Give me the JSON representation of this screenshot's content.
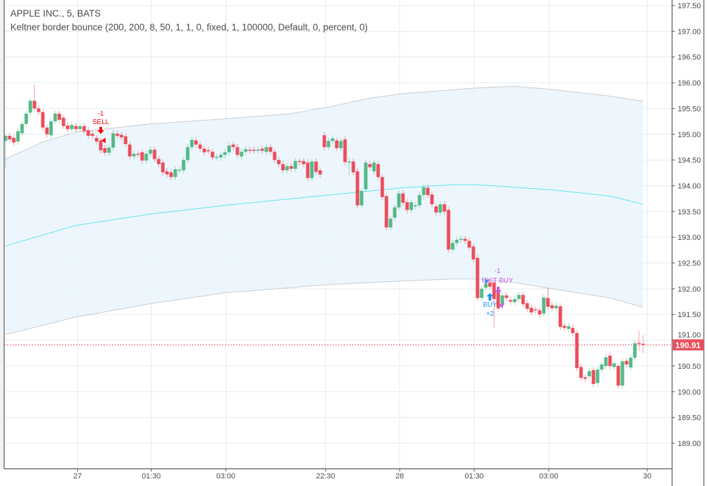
{
  "legend": {
    "symbol": "APPLE INC., 5, BATS",
    "strategy": "Keltner border bounce (200, 200, 8, 50, 1, 1, 0, fixed, 1, 100000, Default, 0, percent, 0)"
  },
  "colors": {
    "up": "#53b987",
    "down": "#eb4d5c",
    "band_fill": "#e9f4fb",
    "band_line": "#c9cdd2",
    "mid_line": "#5fe3f0",
    "grid": "#e1ecf2",
    "sell": "#ff0000",
    "buy": "#2196f3",
    "exit": "#c85ce6",
    "last_price": "#eb4d5c"
  },
  "chart_data": {
    "type": "candlestick",
    "title": "APPLE INC., 5, BATS",
    "ylim": [
      188.6,
      197.6
    ],
    "y_ticks": [
      "197.50",
      "197.00",
      "196.50",
      "196.00",
      "195.50",
      "195.00",
      "194.50",
      "194.00",
      "193.50",
      "193.00",
      "192.50",
      "192.00",
      "191.50",
      "191.00",
      "190.50",
      "190.00",
      "189.50",
      "189.00"
    ],
    "x_ticks": [
      {
        "bar": 17.4,
        "label": "27"
      },
      {
        "bar": 35.2,
        "label": "01:30"
      },
      {
        "bar": 53.2,
        "label": "03:00"
      },
      {
        "bar": 77.3,
        "label": "22:30"
      },
      {
        "bar": 95.2,
        "label": "28"
      },
      {
        "bar": 113.2,
        "label": "01:30"
      },
      {
        "bar": 131.2,
        "label": "03:00"
      },
      {
        "bar": 155.0,
        "label": "30"
      }
    ],
    "last_price": "190.91",
    "candles_oc": [
      [
        194.87,
        194.97
      ],
      [
        194.97,
        194.9
      ],
      [
        194.93,
        194.84
      ],
      [
        194.86,
        195.06
      ],
      [
        195.02,
        195.2
      ],
      [
        195.2,
        195.4
      ],
      [
        195.42,
        195.65
      ],
      [
        195.65,
        195.5
      ],
      [
        195.5,
        195.43
      ],
      [
        195.43,
        195.13
      ],
      [
        195.13,
        195.0
      ],
      [
        194.98,
        195.25
      ],
      [
        195.25,
        195.4
      ],
      [
        195.4,
        195.28
      ],
      [
        195.32,
        195.16
      ],
      [
        195.17,
        195.1
      ],
      [
        195.1,
        195.18
      ],
      [
        195.16,
        195.1
      ],
      [
        195.1,
        195.16
      ],
      [
        195.16,
        195.06
      ],
      [
        195.08,
        194.97
      ],
      [
        195.01,
        194.97
      ],
      [
        194.93,
        194.86
      ],
      [
        194.88,
        194.69
      ],
      [
        194.73,
        194.64
      ],
      [
        194.64,
        194.74
      ],
      [
        194.74,
        195.02
      ],
      [
        195.01,
        194.97
      ],
      [
        194.99,
        194.94
      ],
      [
        194.96,
        194.81
      ],
      [
        194.8,
        194.57
      ],
      [
        194.57,
        194.62
      ],
      [
        194.62,
        194.6
      ],
      [
        194.65,
        194.49
      ],
      [
        194.49,
        194.62
      ],
      [
        194.62,
        194.7
      ],
      [
        194.7,
        194.52
      ],
      [
        194.52,
        194.42
      ],
      [
        194.45,
        194.26
      ],
      [
        194.28,
        194.22
      ],
      [
        194.26,
        194.17
      ],
      [
        194.17,
        194.32
      ],
      [
        194.3,
        194.31
      ],
      [
        194.3,
        194.5
      ],
      [
        194.5,
        194.75
      ],
      [
        194.75,
        194.89
      ],
      [
        194.88,
        194.8
      ],
      [
        194.8,
        194.72
      ],
      [
        194.72,
        194.65
      ],
      [
        194.69,
        194.68
      ],
      [
        194.66,
        194.55
      ],
      [
        194.55,
        194.56
      ],
      [
        194.55,
        194.6
      ],
      [
        194.6,
        194.65
      ],
      [
        194.65,
        194.78
      ],
      [
        194.8,
        194.75
      ],
      [
        194.75,
        194.6
      ],
      [
        194.57,
        194.66
      ],
      [
        194.66,
        194.71
      ],
      [
        194.7,
        194.68
      ],
      [
        194.7,
        194.68
      ],
      [
        194.69,
        194.7
      ],
      [
        194.72,
        194.68
      ],
      [
        194.66,
        194.75
      ],
      [
        194.75,
        194.66
      ],
      [
        194.66,
        194.5
      ],
      [
        194.5,
        194.42
      ],
      [
        194.42,
        194.3
      ],
      [
        194.3,
        194.38
      ],
      [
        194.38,
        194.33
      ],
      [
        194.33,
        194.48
      ],
      [
        194.48,
        194.46
      ],
      [
        194.48,
        194.42
      ],
      [
        194.45,
        194.15
      ],
      [
        194.15,
        194.47
      ],
      [
        194.47,
        194.27
      ],
      [
        194.3,
        194.22
      ],
      [
        194.98,
        194.75
      ],
      [
        194.75,
        194.87
      ],
      [
        194.87,
        194.92
      ],
      [
        194.88,
        194.73
      ],
      [
        194.73,
        194.87
      ],
      [
        194.9,
        194.46
      ],
      [
        194.46,
        194.47
      ],
      [
        194.47,
        194.26
      ],
      [
        194.28,
        193.62
      ],
      [
        193.62,
        193.9
      ],
      [
        193.93,
        194.45
      ],
      [
        194.42,
        194.36
      ],
      [
        194.28,
        194.45
      ],
      [
        194.42,
        194.17
      ],
      [
        194.17,
        193.78
      ],
      [
        193.8,
        193.19
      ],
      [
        193.19,
        193.36
      ],
      [
        193.38,
        193.58
      ],
      [
        193.58,
        193.85
      ],
      [
        193.85,
        193.67
      ],
      [
        193.68,
        193.53
      ],
      [
        193.53,
        193.68
      ],
      [
        193.6,
        193.62
      ],
      [
        193.62,
        193.82
      ],
      [
        193.82,
        193.97
      ],
      [
        193.96,
        193.82
      ],
      [
        193.83,
        193.64
      ],
      [
        193.6,
        193.48
      ],
      [
        193.48,
        193.64
      ],
      [
        193.64,
        193.5
      ],
      [
        193.53,
        192.76
      ],
      [
        192.76,
        192.89
      ],
      [
        192.89,
        192.95
      ],
      [
        192.95,
        192.97
      ],
      [
        192.97,
        192.93
      ],
      [
        192.93,
        192.8
      ],
      [
        192.82,
        192.57
      ],
      [
        192.6,
        191.82
      ],
      [
        191.82,
        192.0
      ],
      [
        192.02,
        192.1
      ],
      [
        192.12,
        192.04
      ],
      [
        192.12,
        191.8
      ],
      [
        191.95,
        191.62
      ],
      [
        191.68,
        191.87
      ],
      [
        191.87,
        191.82
      ],
      [
        191.78,
        191.75
      ],
      [
        191.74,
        191.8
      ],
      [
        191.8,
        191.88
      ],
      [
        191.88,
        191.7
      ],
      [
        191.72,
        191.61
      ],
      [
        191.63,
        191.54
      ],
      [
        191.6,
        191.58
      ],
      [
        191.58,
        191.5
      ],
      [
        191.52,
        191.83
      ],
      [
        191.82,
        191.65
      ],
      [
        191.68,
        191.62
      ],
      [
        191.62,
        191.67
      ],
      [
        191.66,
        191.26
      ],
      [
        191.28,
        191.24
      ],
      [
        191.22,
        191.27
      ],
      [
        191.24,
        191.14
      ],
      [
        191.14,
        190.46
      ],
      [
        190.48,
        190.27
      ],
      [
        190.28,
        190.25
      ],
      [
        190.3,
        190.4
      ],
      [
        190.42,
        190.15
      ],
      [
        190.17,
        190.43
      ],
      [
        190.43,
        190.53
      ],
      [
        190.5,
        190.67
      ],
      [
        190.7,
        190.5
      ],
      [
        190.48,
        190.55
      ],
      [
        190.5,
        190.12
      ],
      [
        190.12,
        190.59
      ],
      [
        190.6,
        190.53
      ],
      [
        190.47,
        190.66
      ],
      [
        190.66,
        190.94
      ],
      [
        190.95,
        190.93
      ],
      [
        190.93,
        190.91
      ]
    ],
    "wick_overrides": {
      "0": [
        195.0,
        194.35
      ],
      "7": [
        195.96,
        195.45
      ],
      "83": [
        194.55,
        194.2
      ],
      "118": [
        192.15,
        191.25
      ],
      "131": [
        192.02,
        191.6
      ],
      "153": [
        191.18,
        190.8
      ],
      "154": [
        191.1,
        190.75
      ]
    },
    "keltner": {
      "upper": [
        [
          0,
          194.52
        ],
        [
          9,
          194.85
        ],
        [
          17,
          195.04
        ],
        [
          27,
          195.13
        ],
        [
          35,
          195.2
        ],
        [
          53,
          195.3
        ],
        [
          69,
          195.4
        ],
        [
          78,
          195.53
        ],
        [
          88,
          195.7
        ],
        [
          96,
          195.79
        ],
        [
          114,
          195.9
        ],
        [
          123,
          195.93
        ],
        [
          132,
          195.87
        ],
        [
          146,
          195.74
        ],
        [
          154,
          195.64
        ]
      ],
      "middle": [
        [
          0,
          192.83
        ],
        [
          17,
          193.23
        ],
        [
          35,
          193.45
        ],
        [
          53,
          193.62
        ],
        [
          78,
          193.82
        ],
        [
          96,
          193.96
        ],
        [
          108,
          194.02
        ],
        [
          114,
          194.02
        ],
        [
          132,
          193.92
        ],
        [
          146,
          193.8
        ],
        [
          154,
          193.64
        ]
      ],
      "lower": [
        [
          0,
          191.11
        ],
        [
          17,
          191.45
        ],
        [
          35,
          191.71
        ],
        [
          53,
          191.92
        ],
        [
          78,
          192.08
        ],
        [
          96,
          192.15
        ],
        [
          108,
          192.19
        ],
        [
          114,
          192.19
        ],
        [
          123,
          192.12
        ],
        [
          132,
          192.0
        ],
        [
          146,
          191.82
        ],
        [
          154,
          191.64
        ]
      ]
    },
    "trades": [
      {
        "bar": 23,
        "price": 194.88,
        "qty": "-1",
        "label": "SELL",
        "side": "sell"
      },
      {
        "bar": 117,
        "price": 192.1,
        "qty": "+2",
        "label": "BUY",
        "side": "buy"
      },
      {
        "bar": 119,
        "price": 191.7,
        "qty": "-1",
        "label": "EXIT BUY",
        "side": "exit"
      }
    ]
  }
}
